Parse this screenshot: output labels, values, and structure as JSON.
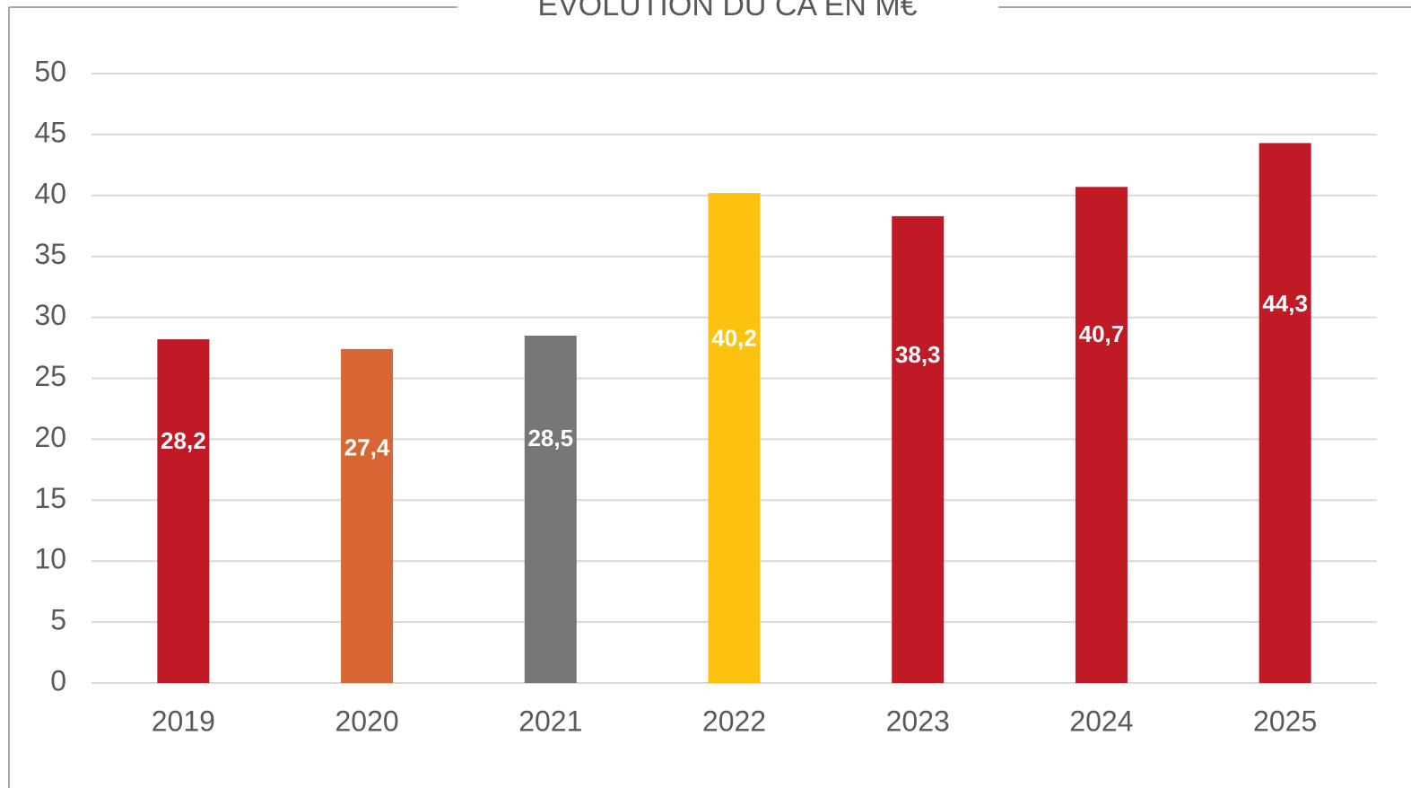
{
  "chart_data": {
    "type": "bar",
    "title": "ÉVOLUTION DU CA EN M€",
    "categories": [
      "2019",
      "2020",
      "2021",
      "2022",
      "2023",
      "2024",
      "2025"
    ],
    "values": [
      28.2,
      27.4,
      28.5,
      40.2,
      38.3,
      40.7,
      44.3
    ],
    "value_labels": [
      "28,2",
      "27,4",
      "28,5",
      "40,2",
      "38,3",
      "40,7",
      "44,3"
    ],
    "colors": [
      "#c01a27",
      "#d76634",
      "#777777",
      "#fdc20f",
      "#c01a27",
      "#c01a27",
      "#c01a27"
    ],
    "ylim": [
      0,
      50
    ],
    "yticks": [
      0,
      5,
      10,
      15,
      20,
      25,
      30,
      35,
      40,
      45,
      50
    ],
    "grid": true
  }
}
